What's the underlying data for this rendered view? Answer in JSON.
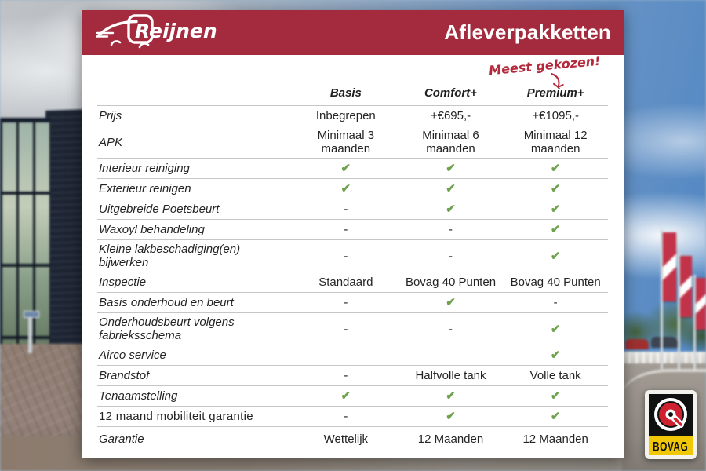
{
  "colors": {
    "brand_red": "#A32B3D",
    "annotation_red": "#B4283B",
    "check_green": "#6FA24F",
    "bovag_yellow": "#F0C808"
  },
  "brand": {
    "logo_text": "Reijnen"
  },
  "header": {
    "title": "Afleverpakketten"
  },
  "annotation": {
    "text": "Meest gekozen!"
  },
  "table": {
    "check_glyph": "✔",
    "columns": [
      "Basis",
      "Comfort+",
      "Premium+"
    ],
    "rows": [
      {
        "label": "Prijs",
        "italic": true,
        "values": [
          "Inbegrepen",
          "+€695,-",
          "+€1095,-"
        ]
      },
      {
        "label": "APK",
        "italic": true,
        "values": [
          "Minimaal 3 maanden",
          "Minimaal 6 maanden",
          "Minimaal 12 maanden"
        ]
      },
      {
        "label": "Interieur reiniging",
        "italic": true,
        "values": [
          "check",
          "check",
          "check"
        ]
      },
      {
        "label": "Exterieur reinigen",
        "italic": true,
        "values": [
          "check",
          "check",
          "check"
        ]
      },
      {
        "label": "Uitgebreide Poetsbeurt",
        "italic": true,
        "values": [
          "-",
          "check",
          "check"
        ]
      },
      {
        "label": "Waxoyl behandeling",
        "italic": true,
        "values": [
          "-",
          "-",
          "check"
        ]
      },
      {
        "label": "Kleine lakbeschadiging(en) bijwerken",
        "italic": true,
        "values": [
          "-",
          "-",
          "check"
        ]
      },
      {
        "label": "Inspectie",
        "italic": true,
        "values": [
          "Standaard",
          "Bovag 40 Punten",
          "Bovag 40 Punten"
        ]
      },
      {
        "label": "Basis onderhoud en beurt",
        "italic": true,
        "values": [
          "-",
          "check",
          "-"
        ]
      },
      {
        "label": "Onderhoudsbeurt volgens fabrieksschema",
        "italic": true,
        "values": [
          "-",
          "-",
          "check"
        ]
      },
      {
        "label": "Airco service",
        "italic": true,
        "values": [
          "",
          "",
          "check"
        ]
      },
      {
        "label": "Brandstof",
        "italic": true,
        "values": [
          "-",
          "Halfvolle tank",
          "Volle tank"
        ]
      },
      {
        "label": "Tenaamstelling",
        "italic": true,
        "values": [
          "check",
          "check",
          "check"
        ]
      },
      {
        "label": "12 maand mobiliteit garantie",
        "italic": false,
        "values": [
          "-",
          "check",
          "check"
        ]
      },
      {
        "label": "Garantie",
        "italic": true,
        "values": [
          "Wettelijk",
          "12 Maanden",
          "12 Maanden"
        ]
      }
    ]
  },
  "badge": {
    "text": "BOVAG"
  }
}
